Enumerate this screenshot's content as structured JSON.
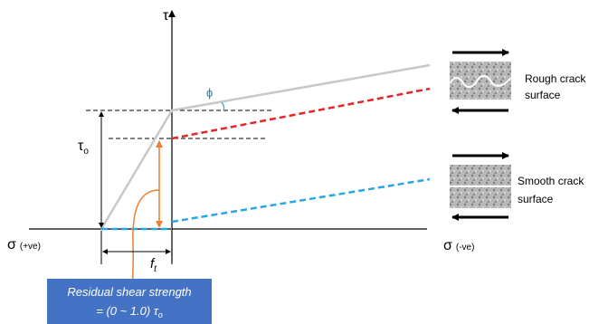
{
  "axes": {
    "tau": "τ",
    "sigma_positive": {
      "symbol": "σ",
      "note": "(+ve)"
    },
    "sigma_negative": {
      "symbol": "σ",
      "note": "(-ve)"
    }
  },
  "angle_label": "ϕ",
  "tau_o_label": {
    "symbol": "τ",
    "subscript": "o"
  },
  "ft_label": {
    "symbol": "f",
    "subscript": "t"
  },
  "rough": {
    "line1": "Rough crack",
    "line2": "surface"
  },
  "smooth": {
    "line1": "Smooth crack",
    "line2": "surface"
  },
  "callout": {
    "line1": "Residual shear strength",
    "line2_prefix": "= (0 ~ 1.0) ",
    "symbol": "τ",
    "subscript": "o"
  }
}
